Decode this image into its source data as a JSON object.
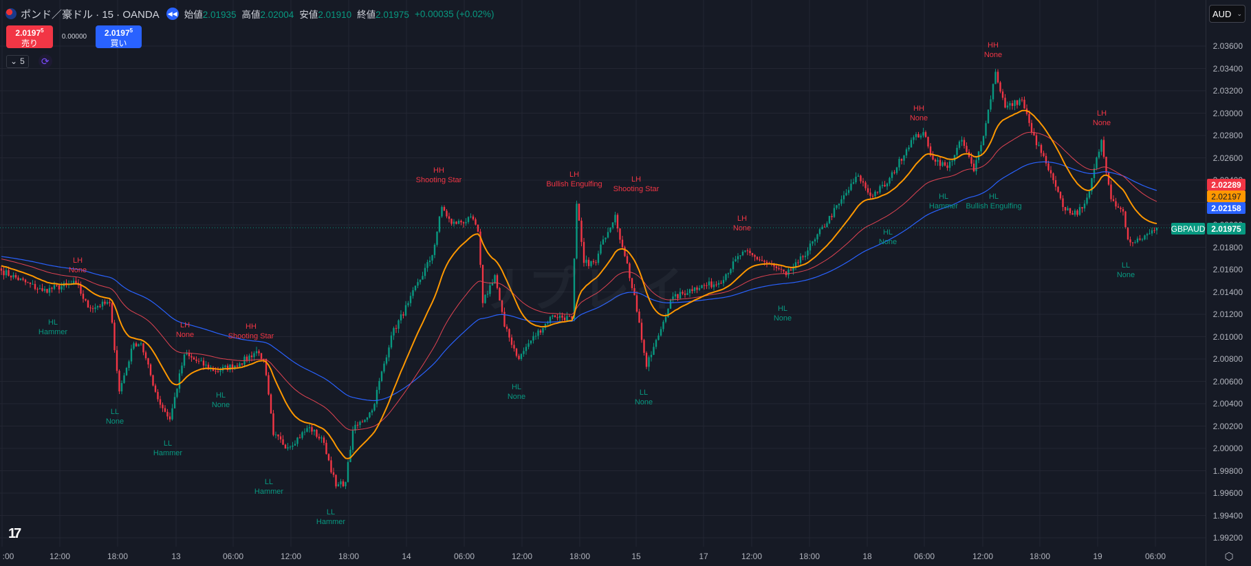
{
  "header": {
    "symbol_title": "ポンド／豪ドル · 15 · OANDA",
    "ohlc": [
      {
        "key": "始値",
        "value": "2.01935"
      },
      {
        "key": "高値",
        "value": "2.02004"
      },
      {
        "key": "安値",
        "value": "2.01910"
      },
      {
        "key": "終値",
        "value": "2.01975"
      }
    ],
    "change": "+0.00035 (+0.02%)"
  },
  "trade": {
    "sell_price": "2.0197",
    "sell_sup": "5",
    "sell_label": "売り",
    "spread": "0.00000",
    "buy_price": "2.0197",
    "buy_sup": "5",
    "buy_label": "買い"
  },
  "indicator_count": "5",
  "currency": "AUD",
  "watermark": "リプレイ",
  "price_tags": {
    "red": "2.02289",
    "orange": "2.02197",
    "blue": "2.02158",
    "symbol": "GBPAUD",
    "last": "2.01975"
  },
  "colors": {
    "up": "#089981",
    "down": "#f23645",
    "ma_fast": "#ff9800",
    "ma_mid": "#e04352",
    "ma_slow": "#2962ff",
    "bg": "#161a25",
    "grid": "#232632"
  },
  "chart_data": {
    "type": "candlestick",
    "symbol": "GBPAUD",
    "interval": "15",
    "ylim": [
      1.991,
      2.0378
    ],
    "y_ticks": [
      "2.03600",
      "2.03400",
      "2.03200",
      "2.03000",
      "2.02800",
      "2.02600",
      "2.02400",
      "2.02200",
      "2.02000",
      "2.01800",
      "2.01600",
      "2.01400",
      "2.01200",
      "2.01000",
      "2.00800",
      "2.00600",
      "2.00400",
      "2.00200",
      "2.00000",
      "1.99800",
      "1.99600",
      "1.99400",
      "1.99200"
    ],
    "x_ticks": [
      ":00",
      "12:00",
      "18:00",
      "13",
      "06:00",
      "12:00",
      "18:00",
      "14",
      "06:00",
      "12:00",
      "18:00",
      "15",
      "17",
      "12:00",
      "18:00",
      "18",
      "06:00",
      "12:00",
      "18:00",
      "19",
      "06:00"
    ],
    "close_keypoints_bar_price": [
      [
        0,
        2.0159
      ],
      [
        17,
        2.0141
      ],
      [
        31,
        2.0148
      ],
      [
        36,
        2.0126
      ],
      [
        45,
        2.013
      ],
      [
        49,
        2.0051
      ],
      [
        55,
        2.0094
      ],
      [
        58,
        2.0094
      ],
      [
        65,
        2.0044
      ],
      [
        70,
        2.0026
      ],
      [
        76,
        2.0084
      ],
      [
        89,
        2.0069
      ],
      [
        99,
        2.0076
      ],
      [
        106,
        2.0087
      ],
      [
        109,
        2.008
      ],
      [
        113,
        2.0012
      ],
      [
        119,
        2.0001
      ],
      [
        128,
        2.0019
      ],
      [
        134,
        2.0005
      ],
      [
        139,
        1.9966
      ],
      [
        143,
        1.997
      ],
      [
        146,
        2.0016
      ],
      [
        154,
        2.0034
      ],
      [
        162,
        2.0101
      ],
      [
        169,
        2.013
      ],
      [
        179,
        2.0173
      ],
      [
        183,
        2.0216
      ],
      [
        187,
        2.0201
      ],
      [
        196,
        2.0205
      ],
      [
        198,
        2.0194
      ],
      [
        200,
        2.013
      ],
      [
        205,
        2.0155
      ],
      [
        209,
        2.0109
      ],
      [
        215,
        2.008
      ],
      [
        219,
        2.0094
      ],
      [
        229,
        2.0119
      ],
      [
        237,
        2.0116
      ],
      [
        239,
        2.0219
      ],
      [
        242,
        2.0166
      ],
      [
        247,
        2.0166
      ],
      [
        250,
        2.0187
      ],
      [
        255,
        2.0209
      ],
      [
        258,
        2.018
      ],
      [
        263,
        2.0137
      ],
      [
        268,
        2.0073
      ],
      [
        273,
        2.0101
      ],
      [
        278,
        2.0133
      ],
      [
        288,
        2.0144
      ],
      [
        298,
        2.0148
      ],
      [
        308,
        2.0176
      ],
      [
        318,
        2.0166
      ],
      [
        326,
        2.0155
      ],
      [
        331,
        2.0166
      ],
      [
        338,
        2.0187
      ],
      [
        348,
        2.0219
      ],
      [
        356,
        2.0244
      ],
      [
        361,
        2.0226
      ],
      [
        368,
        2.0237
      ],
      [
        378,
        2.0276
      ],
      [
        383,
        2.0283
      ],
      [
        386,
        2.0262
      ],
      [
        393,
        2.0251
      ],
      [
        399,
        2.0276
      ],
      [
        404,
        2.0248
      ],
      [
        409,
        2.0291
      ],
      [
        413,
        2.0337
      ],
      [
        417,
        2.0305
      ],
      [
        424,
        2.0312
      ],
      [
        428,
        2.0283
      ],
      [
        434,
        2.0255
      ],
      [
        441,
        2.0216
      ],
      [
        447,
        2.0209
      ],
      [
        452,
        2.023
      ],
      [
        457,
        2.0276
      ],
      [
        461,
        2.0223
      ],
      [
        466,
        2.0212
      ],
      [
        468,
        2.0187
      ],
      [
        474,
        2.0187
      ],
      [
        480,
        2.01975
      ]
    ],
    "moving_averages": [
      {
        "name": "fast",
        "color": "#ff9800",
        "last": 2.02197
      },
      {
        "name": "mid",
        "color": "#e04352",
        "last": 2.02289
      },
      {
        "name": "slow",
        "color": "#2962ff",
        "last": 2.02158
      }
    ],
    "annotations": [
      {
        "kind": "high",
        "structure": "LH",
        "pattern": "None"
      },
      {
        "kind": "low",
        "structure": "HL",
        "pattern": "Hammer"
      },
      {
        "kind": "high",
        "structure": "LH",
        "pattern": "None"
      },
      {
        "kind": "high",
        "structure": "HH",
        "pattern": "Shooting Star"
      },
      {
        "kind": "low",
        "structure": "LL",
        "pattern": "None"
      },
      {
        "kind": "low",
        "structure": "LL",
        "pattern": "Hammer"
      },
      {
        "kind": "low",
        "structure": "HL",
        "pattern": "None"
      },
      {
        "kind": "low",
        "structure": "LL",
        "pattern": "Hammer"
      },
      {
        "kind": "low",
        "structure": "LL",
        "pattern": "Hammer"
      },
      {
        "kind": "high",
        "structure": "HH",
        "pattern": "Shooting Star"
      },
      {
        "kind": "high",
        "structure": "LH",
        "pattern": "Bullish Engulfing"
      },
      {
        "kind": "high",
        "structure": "LH",
        "pattern": "Shooting Star"
      },
      {
        "kind": "low",
        "structure": "HL",
        "pattern": "None"
      },
      {
        "kind": "low",
        "structure": "LL",
        "pattern": "None"
      },
      {
        "kind": "high",
        "structure": "LH",
        "pattern": "None"
      },
      {
        "kind": "low",
        "structure": "HL",
        "pattern": "None"
      },
      {
        "kind": "low",
        "structure": "HL",
        "pattern": "None"
      },
      {
        "kind": "high",
        "structure": "HH",
        "pattern": "None"
      },
      {
        "kind": "low",
        "structure": "HL",
        "pattern": "Hammer"
      },
      {
        "kind": "low",
        "structure": "HL",
        "pattern": "Bullish Engulfing"
      },
      {
        "kind": "high",
        "structure": "HH",
        "pattern": "None"
      },
      {
        "kind": "high",
        "structure": "LH",
        "pattern": "None"
      },
      {
        "kind": "low",
        "structure": "LL",
        "pattern": "None"
      }
    ]
  }
}
